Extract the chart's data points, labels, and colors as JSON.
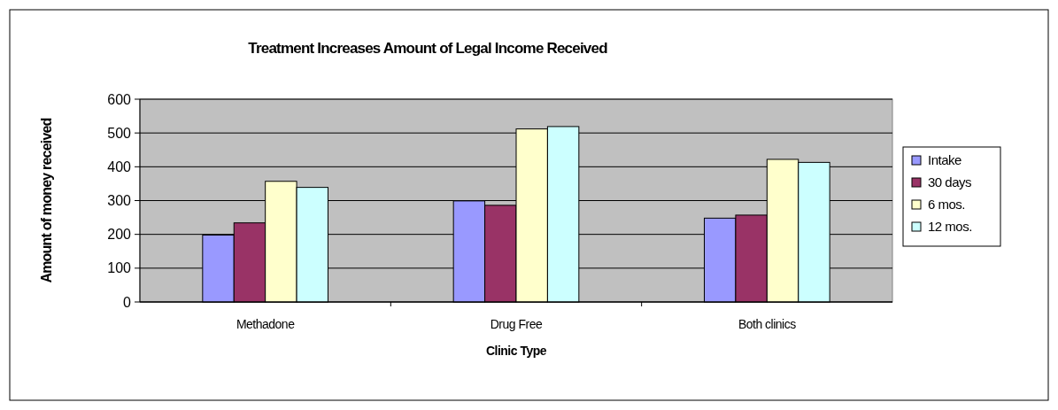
{
  "chart_data": {
    "type": "bar",
    "title": "Treatment Increases Amount of Legal Income Received",
    "xlabel": "Clinic Type",
    "ylabel": "Amount of money received",
    "categories": [
      "Methadone",
      "Drug Free",
      "Both clinics"
    ],
    "series": [
      {
        "name": "Intake",
        "color": "#9999ff",
        "values": [
          198,
          299,
          248
        ]
      },
      {
        "name": "30 days",
        "color": "#993366",
        "values": [
          234,
          286,
          257
        ]
      },
      {
        "name": "6 mos.",
        "color": "#ffffcc",
        "values": [
          357,
          512,
          422
        ]
      },
      {
        "name": "12 mos.",
        "color": "#ccffff",
        "values": [
          339,
          519,
          413
        ]
      }
    ],
    "ylim": [
      0,
      600
    ],
    "yticks": [
      0,
      100,
      200,
      300,
      400,
      500,
      600
    ],
    "grid": "y",
    "legend": "right"
  }
}
